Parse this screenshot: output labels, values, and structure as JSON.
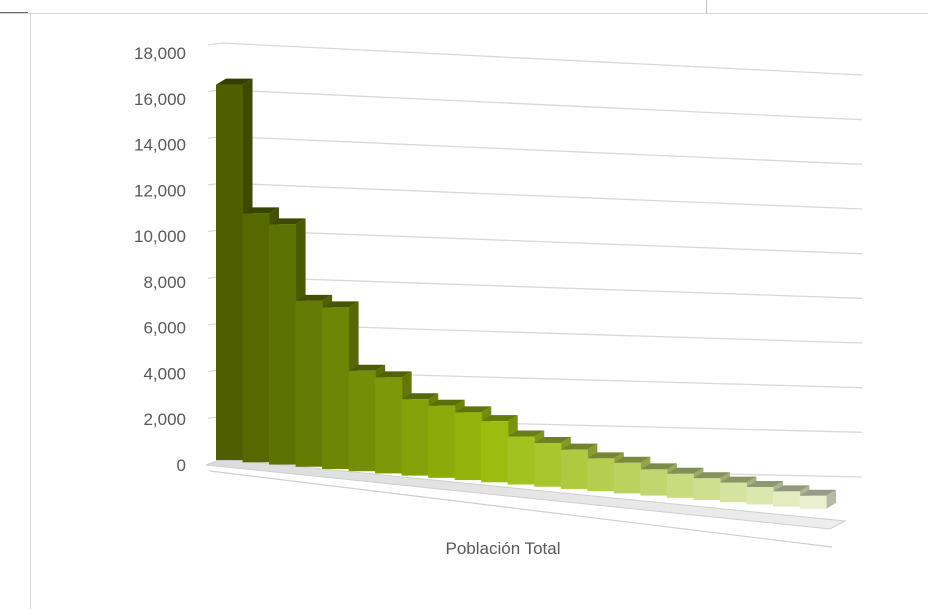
{
  "chart_data": {
    "type": "bar",
    "subtype": "3d-column",
    "xlabel": "Población Total",
    "ylabel": "",
    "ylim": [
      0,
      18000
    ],
    "y_ticks": [
      "0",
      "2,000",
      "4,000",
      "6,000",
      "8,000",
      "10,000",
      "12,000",
      "14,000",
      "16,000",
      "18,000"
    ],
    "grid": true,
    "legend": "none",
    "series": [
      {
        "values": [
          17200,
          11400,
          11000,
          7600,
          7400,
          4600,
          4400,
          3500,
          3300,
          3100,
          2800,
          2200,
          2000,
          1800,
          1500,
          1400,
          1200,
          1100,
          1000,
          900,
          800,
          700,
          600
        ]
      }
    ],
    "colors": {
      "dark": "#4f5f00",
      "mid": "#9bbd0e",
      "light": "#e9efcf",
      "grid": "#d9d9d9",
      "axis_text": "#595959"
    }
  }
}
